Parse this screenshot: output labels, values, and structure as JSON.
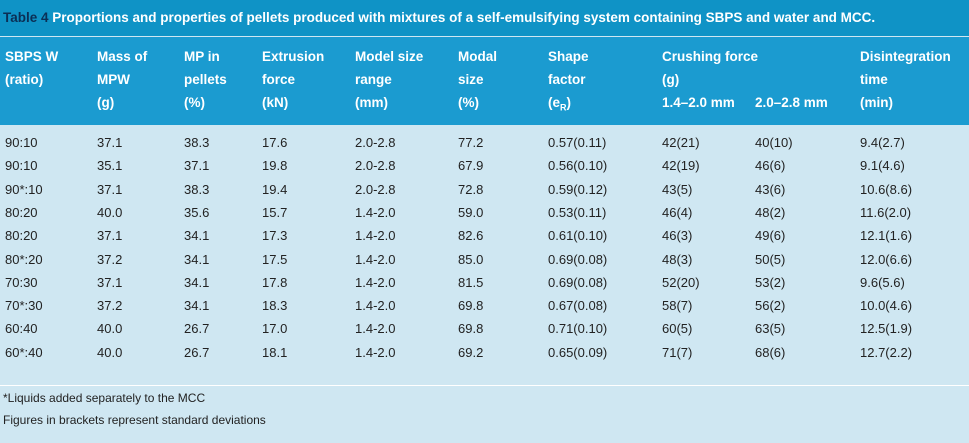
{
  "header": {
    "label": "Table 4",
    "title": "Proportions and properties of pellets produced with mixtures of a self-emulsifying system containing SBPS and water and MCC."
  },
  "table": {
    "columns": [
      [
        "SBPS W",
        "(ratio)"
      ],
      [
        "Mass of",
        "MPW",
        "(g)"
      ],
      [
        "MP in",
        "pellets",
        "(%)"
      ],
      [
        "Extrusion",
        "force",
        "(kN)"
      ],
      [
        "Model size",
        "range",
        "(mm)"
      ],
      [
        "Modal",
        "size",
        "(%)"
      ],
      [
        "Shape",
        "factor"
      ],
      [
        "Crushing force",
        "(g)"
      ],
      [
        "Disintegration",
        "time",
        "(min)"
      ]
    ],
    "shape_symbol": {
      "open": "(e",
      "sub": "R",
      "close": ")"
    },
    "subcolumns": [
      "1.4–2.0 mm",
      "2.0–2.8 mm"
    ],
    "rows": [
      [
        "90:10",
        "37.1",
        "38.3",
        "17.6",
        "2.0-2.8",
        "77.2",
        "0.57(0.11)",
        "42(21)",
        "40(10)",
        "9.4(2.7)"
      ],
      [
        "90:10",
        "35.1",
        "37.1",
        "19.8",
        "2.0-2.8",
        "67.9",
        "0.56(0.10)",
        "42(19)",
        "46(6)",
        "9.1(4.6)"
      ],
      [
        "90*:10",
        "37.1",
        "38.3",
        "19.4",
        "2.0-2.8",
        "72.8",
        "0.59(0.12)",
        "43(5)",
        "43(6)",
        "10.6(8.6)"
      ],
      [
        "80:20",
        "40.0",
        "35.6",
        "15.7",
        "1.4-2.0",
        "59.0",
        "0.53(0.11)",
        "46(4)",
        "48(2)",
        "11.6(2.0)"
      ],
      [
        "80:20",
        "37.1",
        "34.1",
        "17.3",
        "1.4-2.0",
        "82.6",
        "0.61(0.10)",
        "46(3)",
        "49(6)",
        "12.1(1.6)"
      ],
      [
        "80*:20",
        "37.2",
        "34.1",
        "17.5",
        "1.4-2.0",
        "85.0",
        "0.69(0.08)",
        "48(3)",
        "50(5)",
        "12.0(6.6)"
      ],
      [
        "70:30",
        "37.1",
        "34.1",
        "17.8",
        "1.4-2.0",
        "81.5",
        "0.69(0.08)",
        "52(20)",
        "53(2)",
        "9.6(5.6)"
      ],
      [
        "70*:30",
        "37.2",
        "34.1",
        "18.3",
        "1.4-2.0",
        "69.8",
        "0.67(0.08)",
        "58(7)",
        "56(2)",
        "10.0(4.6)"
      ],
      [
        "60:40",
        "40.0",
        "26.7",
        "17.0",
        "1.4-2.0",
        "69.8",
        "0.71(0.10)",
        "60(5)",
        "63(5)",
        "12.5(1.9)"
      ],
      [
        "60*:40",
        "40.0",
        "26.7",
        "18.1",
        "1.4-2.0",
        "69.2",
        "0.65(0.09)",
        "71(7)",
        "68(6)",
        "12.7(2.2)"
      ]
    ]
  },
  "notes": [
    "*Liquids added separately to the MCC",
    "Figures in brackets represent standard deviations"
  ]
}
